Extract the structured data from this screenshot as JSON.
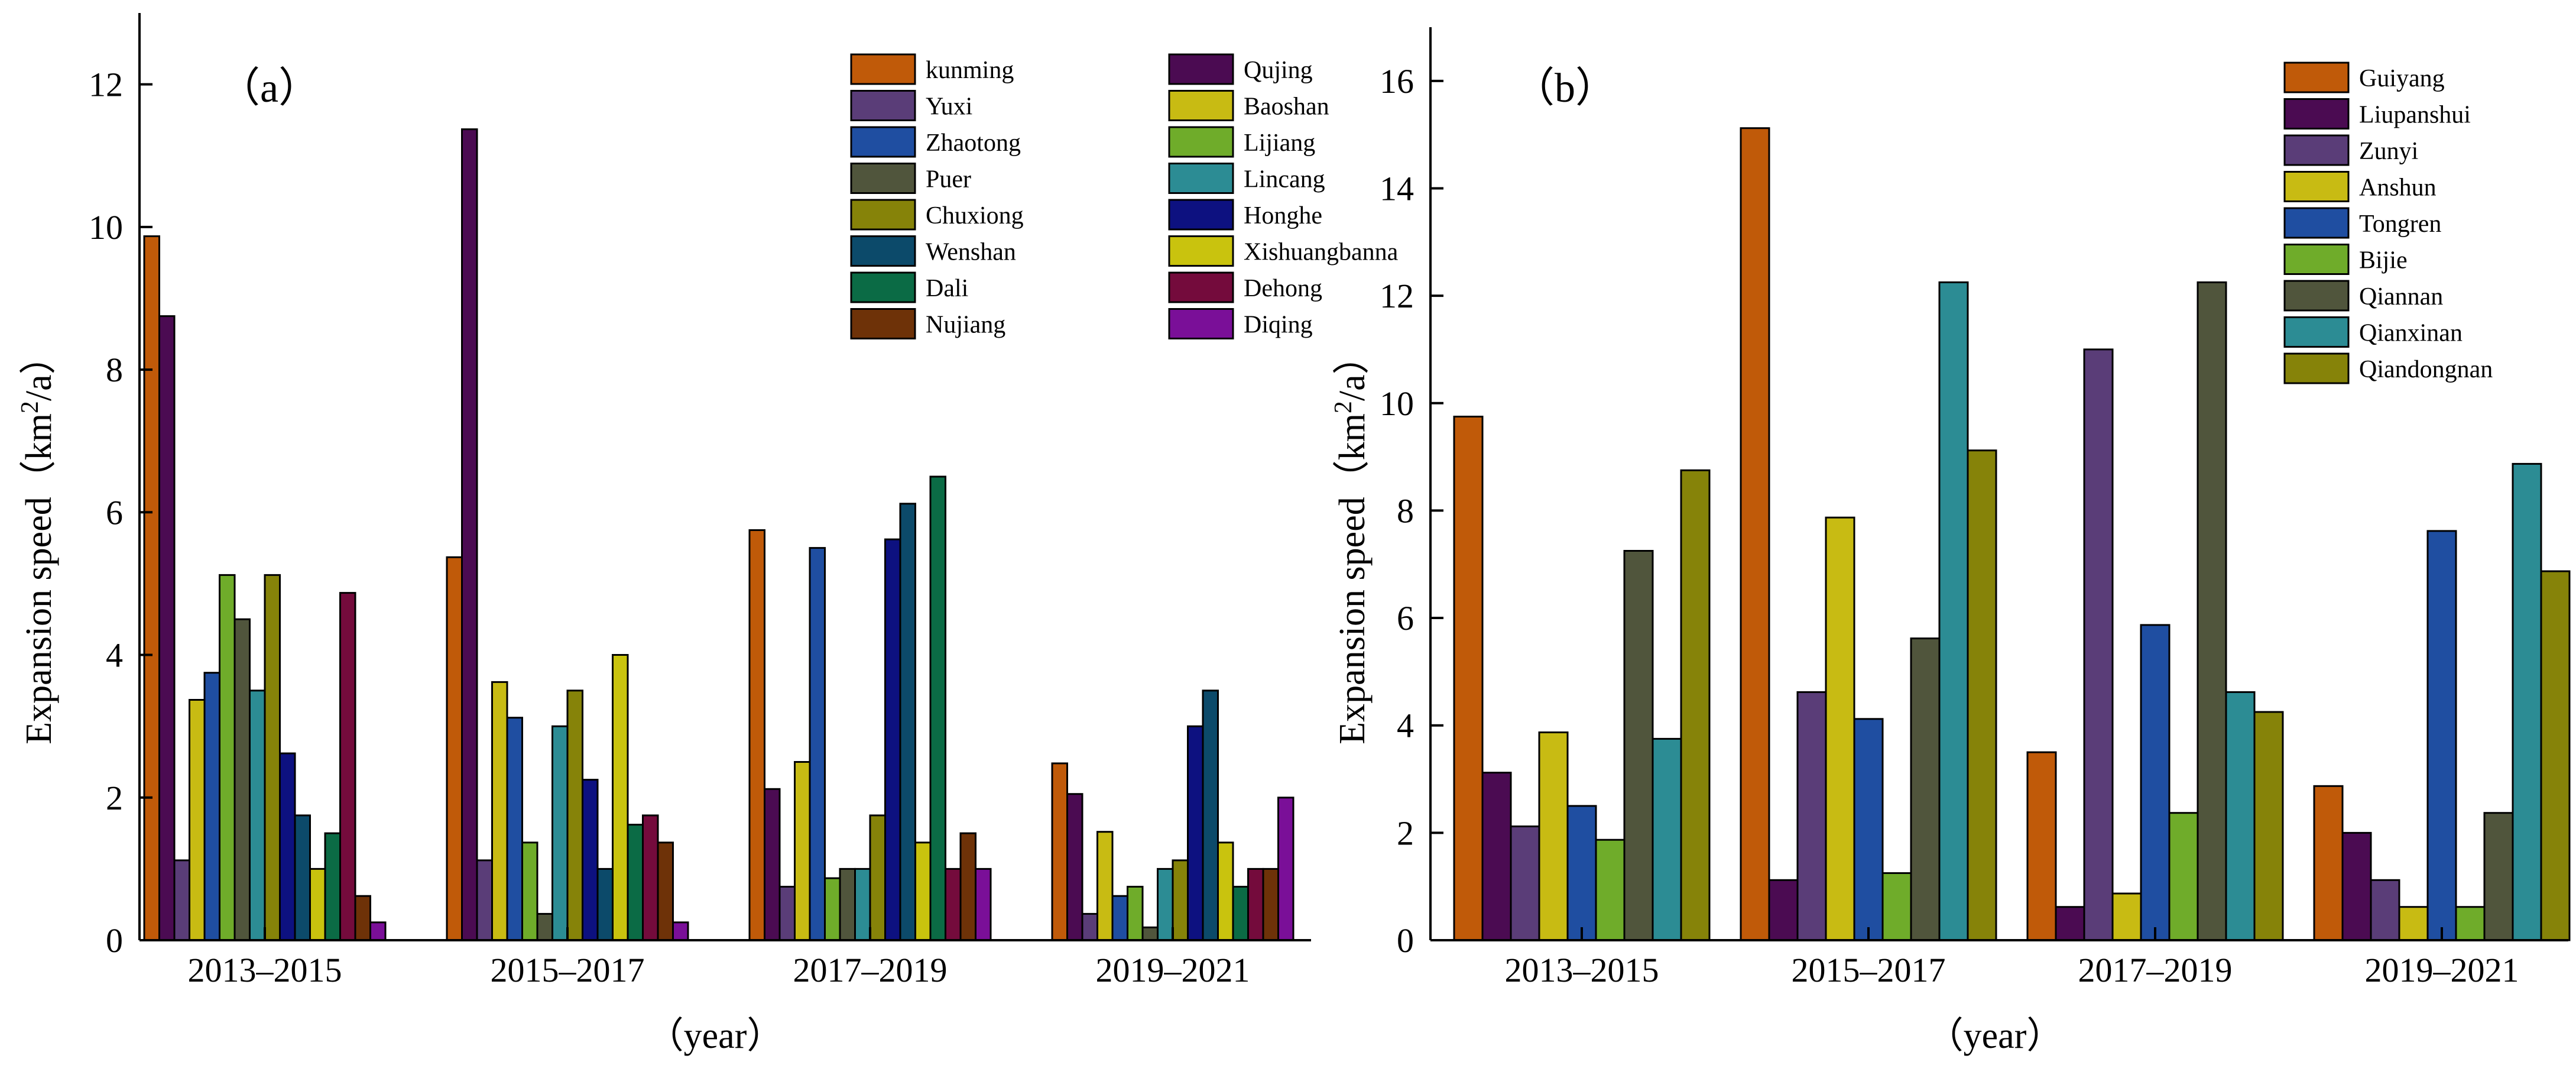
{
  "chart_data": [
    {
      "type": "bar",
      "panel_label": "（a）",
      "xlabel": "（year）",
      "ylabel": "Expansion speed（km²/a）",
      "ylabel_main": "Expansion speed（km",
      "ylabel_sup": "2",
      "ylabel_tail": "/a）",
      "ylim": [
        0,
        13
      ],
      "yticks": [
        0,
        2,
        4,
        6,
        8,
        10,
        12
      ],
      "ytick_labels": [
        "0",
        "2",
        "4",
        "6",
        "8",
        "10",
        "12"
      ],
      "categories": [
        "2013–2015",
        "2015–2017",
        "2017–2019",
        "2019–2021"
      ],
      "legend_position": "top-right",
      "grid": false,
      "series": [
        {
          "name": "kunming",
          "color": "#c05a09",
          "values": [
            9.87,
            5.37,
            5.75,
            2.48
          ]
        },
        {
          "name": "Qujing",
          "color": "#4b0b52",
          "values": [
            8.75,
            11.37,
            2.12,
            2.05
          ]
        },
        {
          "name": "Yuxi",
          "color": "#5a3d78",
          "values": [
            1.12,
            1.12,
            0.75,
            0.37
          ]
        },
        {
          "name": "Baoshan",
          "color": "#c8bb13",
          "values": [
            3.37,
            3.62,
            2.5,
            1.52
          ]
        },
        {
          "name": "Zhaotong",
          "color": "#1f4ea1",
          "values": [
            3.75,
            3.12,
            5.5,
            0.62
          ]
        },
        {
          "name": "Lijiang",
          "color": "#6fac2a",
          "values": [
            5.12,
            1.37,
            0.87,
            0.75
          ]
        },
        {
          "name": "Puer",
          "color": "#50553c",
          "values": [
            4.5,
            0.37,
            1.0,
            0.18
          ]
        },
        {
          "name": "Lincang",
          "color": "#2c8c94",
          "values": [
            3.5,
            3.0,
            1.0,
            1.0
          ]
        },
        {
          "name": "Chuxiong",
          "color": "#868309",
          "values": [
            5.12,
            3.5,
            1.75,
            1.12
          ]
        },
        {
          "name": "Honghe",
          "color": "#0d1180",
          "values": [
            2.62,
            2.25,
            5.62,
            3.0
          ]
        },
        {
          "name": "Wenshan",
          "color": "#0c4a6a",
          "values": [
            1.75,
            1.0,
            6.12,
            3.5
          ]
        },
        {
          "name": "Xishuangbanna",
          "color": "#c9c30e",
          "values": [
            1.0,
            4.0,
            1.37,
            1.37
          ]
        },
        {
          "name": "Dali",
          "color": "#0b6b45",
          "values": [
            1.5,
            1.62,
            6.5,
            0.75
          ]
        },
        {
          "name": "Dehong",
          "color": "#740b3c",
          "values": [
            4.87,
            1.75,
            1.0,
            1.0
          ]
        },
        {
          "name": "Nujiang",
          "color": "#6e3208",
          "values": [
            0.62,
            1.37,
            1.5,
            1.0
          ]
        },
        {
          "name": "Diqing",
          "color": "#7a0f98",
          "values": [
            0.25,
            0.25,
            1.0,
            2.0
          ]
        }
      ]
    },
    {
      "type": "bar",
      "panel_label": "（b）",
      "xlabel": "（year）",
      "ylabel": "Expansion speed（km²/a）",
      "ylabel_main": "Expansion speed（km",
      "ylabel_sup": "2",
      "ylabel_tail": "/a）",
      "ylim": [
        0,
        17
      ],
      "yticks": [
        0,
        2,
        4,
        6,
        8,
        10,
        12,
        14,
        16
      ],
      "ytick_labels": [
        "0",
        "2",
        "4",
        "6",
        "8",
        "10",
        "12",
        "14",
        "16"
      ],
      "categories": [
        "2013–2015",
        "2015–2017",
        "2017–2019",
        "2019–2021"
      ],
      "legend_position": "top-right",
      "grid": false,
      "series": [
        {
          "name": "Guiyang",
          "color": "#c05a09",
          "values": [
            9.75,
            15.12,
            3.5,
            2.87
          ]
        },
        {
          "name": "Liupanshui",
          "color": "#4b0b52",
          "values": [
            3.12,
            1.12,
            0.62,
            2.0
          ]
        },
        {
          "name": "Zunyi",
          "color": "#5a3d78",
          "values": [
            2.12,
            4.62,
            11.0,
            1.12
          ]
        },
        {
          "name": "Anshun",
          "color": "#c8bb13",
          "values": [
            3.87,
            7.87,
            0.87,
            0.62
          ]
        },
        {
          "name": "Tongren",
          "color": "#1f4ea1",
          "values": [
            2.5,
            4.12,
            5.87,
            7.62
          ]
        },
        {
          "name": "Bijie",
          "color": "#6fac2a",
          "values": [
            1.87,
            1.25,
            2.37,
            0.62
          ]
        },
        {
          "name": "Qiannan",
          "color": "#50553c",
          "values": [
            7.25,
            5.62,
            12.25,
            2.37
          ]
        },
        {
          "name": "Qianxinan",
          "color": "#2c8c94",
          "values": [
            3.75,
            12.25,
            4.62,
            8.87
          ]
        },
        {
          "name": "Qiandongnan",
          "color": "#868309",
          "values": [
            8.75,
            9.12,
            4.25,
            6.87
          ]
        }
      ]
    }
  ]
}
